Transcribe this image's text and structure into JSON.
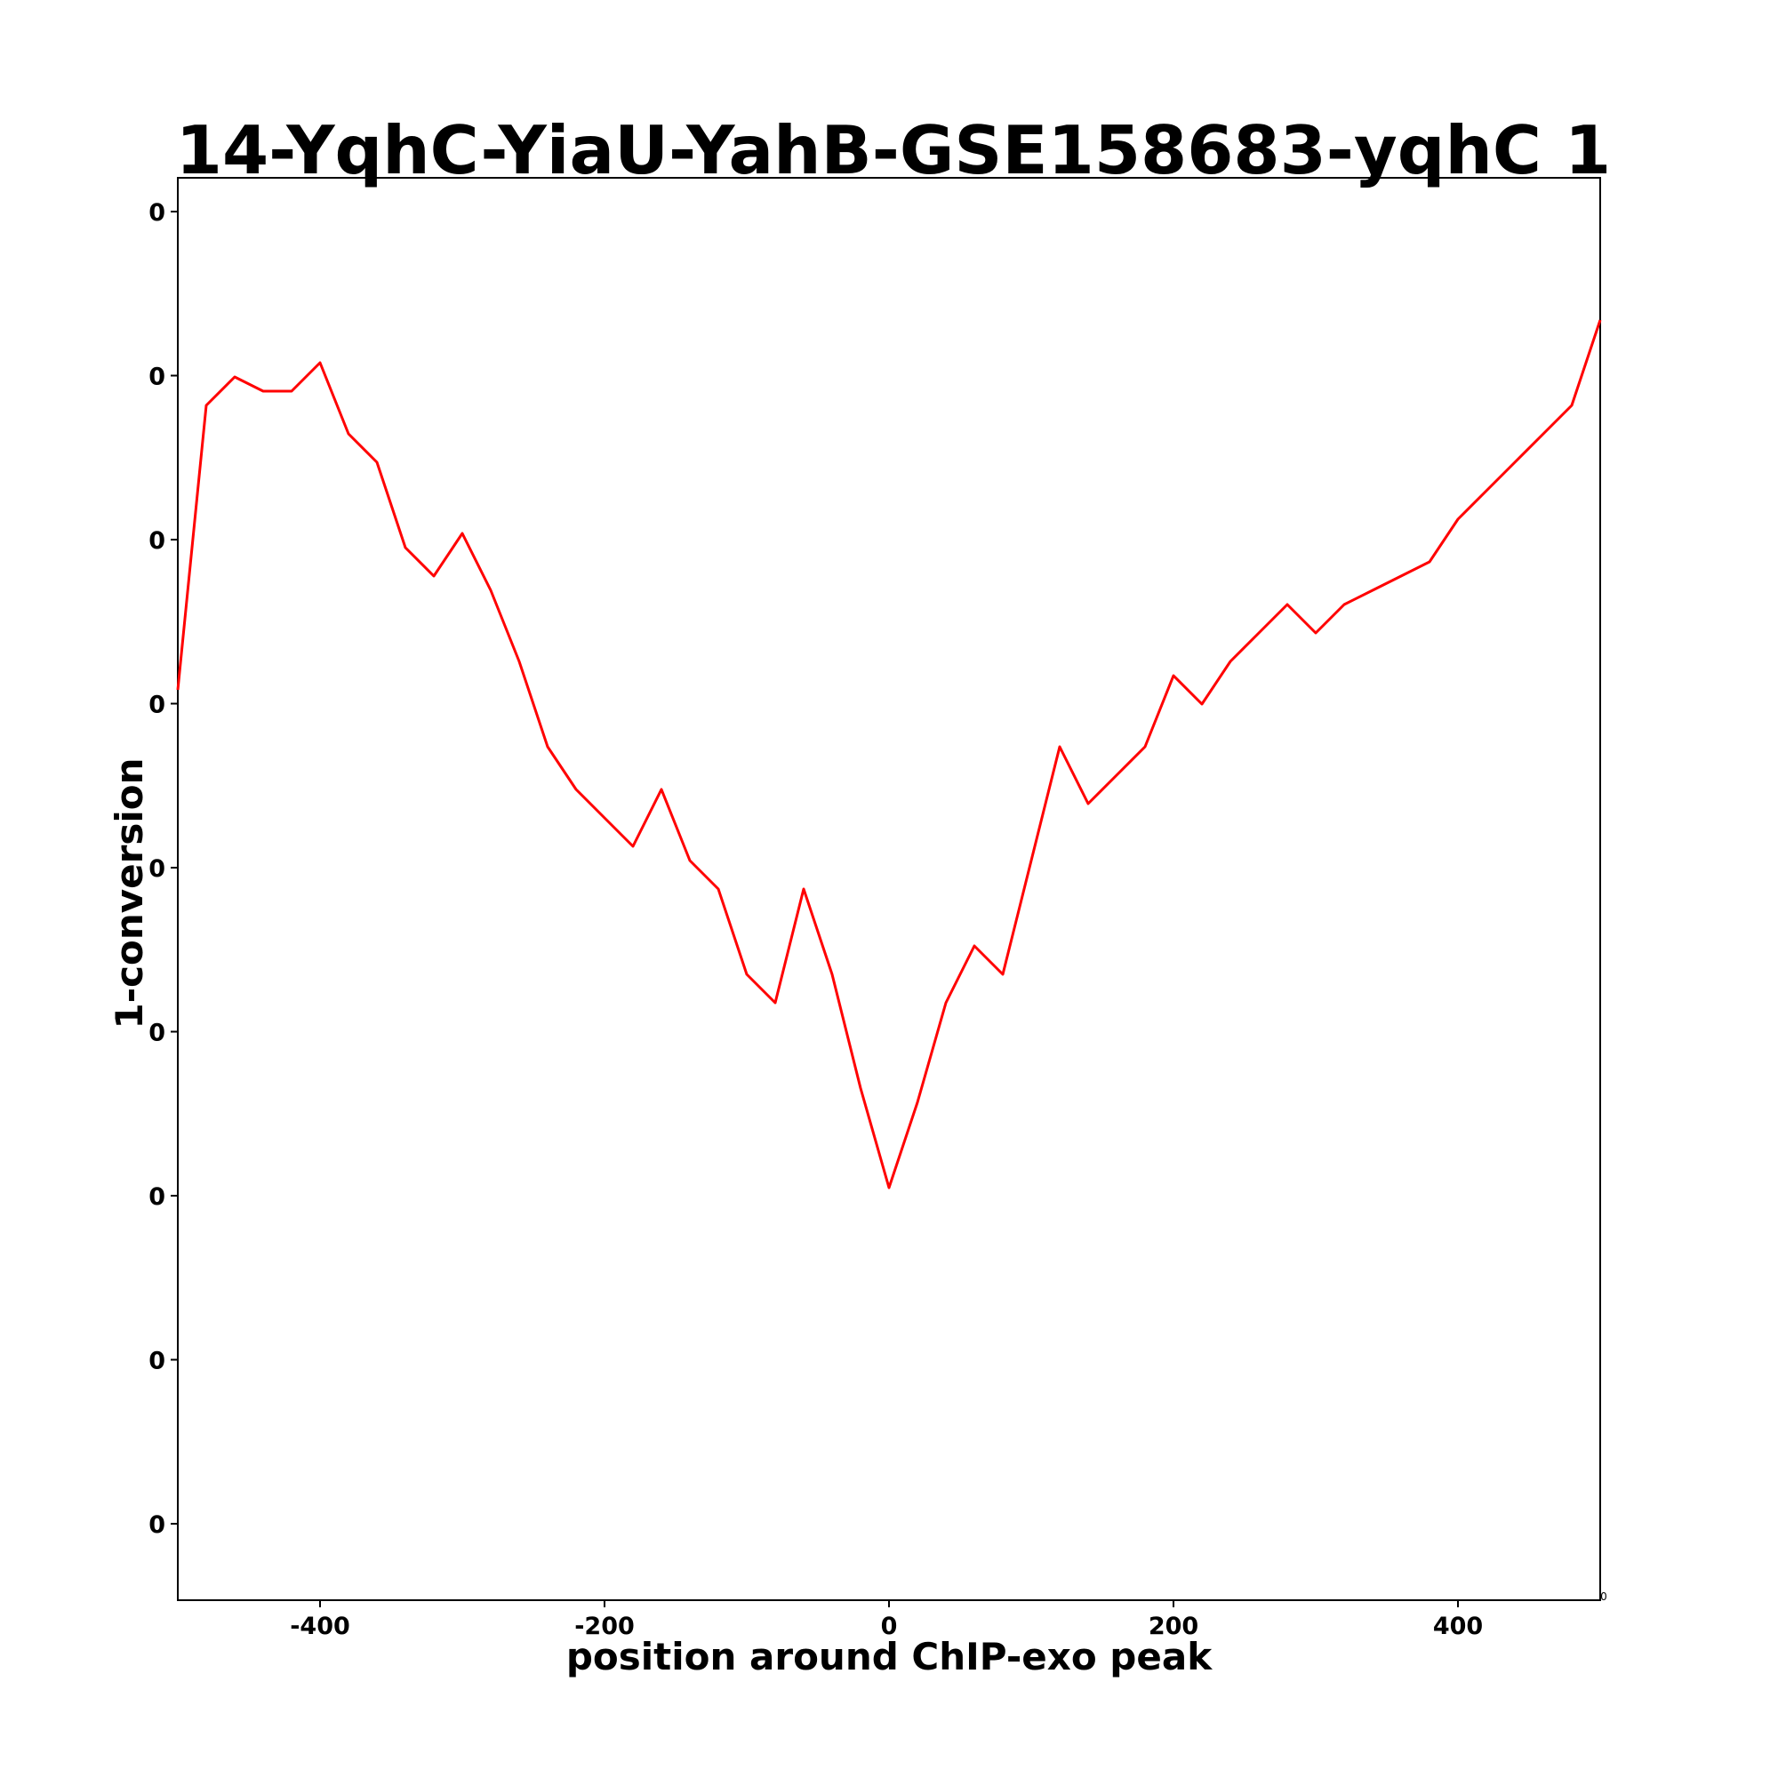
{
  "chart_data": {
    "type": "line",
    "title": "14-YqhC-YiaU-YahB-GSE158683-yqhC 1",
    "xlabel": "position around ChIP-exo peak",
    "ylabel": "1-conversion",
    "xlim": [
      -500,
      500
    ],
    "ylim": [
      0.0,
      1.0
    ],
    "x_ticks": [
      -400,
      -200,
      0,
      200,
      400
    ],
    "x_tick_labels": [
      "-400",
      "-200",
      "0",
      "200",
      "400"
    ],
    "x_edge_label": "0",
    "y_tick_labels": [
      "0",
      "0",
      "0",
      "0",
      "0",
      "0",
      "0",
      "0",
      "0"
    ],
    "grid": false,
    "series": [
      {
        "color": "#ff0000",
        "x": [
          -500,
          -480,
          -460,
          -440,
          -420,
          -400,
          -380,
          -360,
          -340,
          -320,
          -300,
          -280,
          -260,
          -240,
          -220,
          -200,
          -180,
          -160,
          -140,
          -120,
          -100,
          -80,
          -60,
          -40,
          -20,
          0,
          20,
          40,
          60,
          80,
          100,
          120,
          140,
          160,
          180,
          200,
          220,
          240,
          260,
          280,
          300,
          320,
          340,
          360,
          380,
          400,
          420,
          440,
          460,
          480,
          500
        ],
        "y": [
          0.64,
          0.84,
          0.86,
          0.85,
          0.85,
          0.87,
          0.82,
          0.8,
          0.74,
          0.72,
          0.75,
          0.71,
          0.66,
          0.6,
          0.57,
          0.55,
          0.53,
          0.57,
          0.52,
          0.5,
          0.44,
          0.42,
          0.5,
          0.44,
          0.36,
          0.29,
          0.35,
          0.42,
          0.46,
          0.44,
          0.52,
          0.6,
          0.56,
          0.58,
          0.6,
          0.65,
          0.63,
          0.66,
          0.68,
          0.7,
          0.68,
          0.7,
          0.71,
          0.72,
          0.73,
          0.76,
          0.78,
          0.8,
          0.82,
          0.84,
          0.9
        ]
      }
    ]
  }
}
